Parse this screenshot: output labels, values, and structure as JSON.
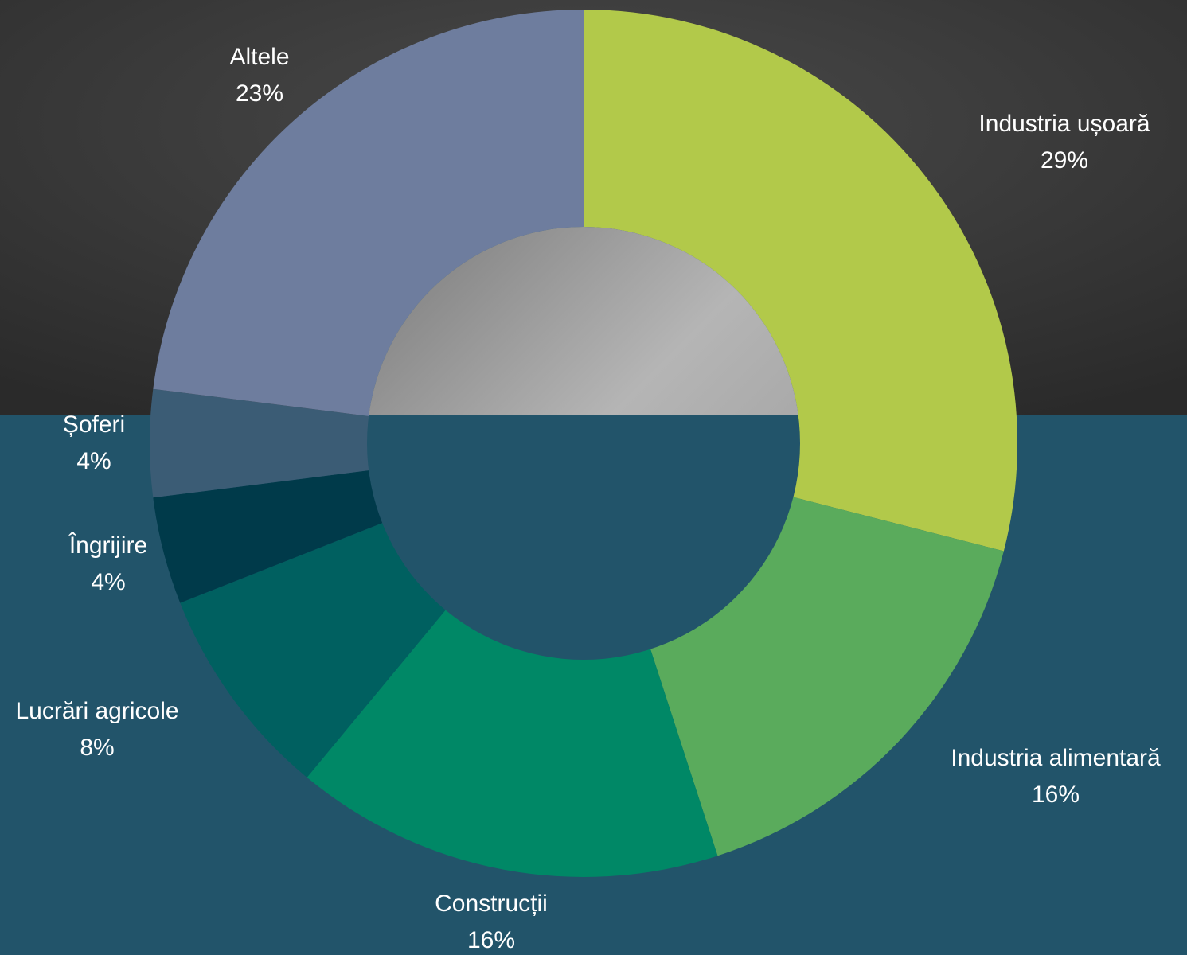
{
  "chart_data": {
    "type": "donut",
    "categories": [
      "Industria ușoară",
      "Industria alimentară",
      "Construcții",
      "Lucrări agricole",
      "Îngrijire",
      "Șoferi",
      "Altele"
    ],
    "values": [
      29,
      16,
      16,
      8,
      4,
      4,
      23
    ],
    "value_labels": [
      "29%",
      "16%",
      "16%",
      "8%",
      "4%",
      "4%",
      "23%"
    ],
    "colors": [
      "#b2c94a",
      "#5aab5c",
      "#008866",
      "#006060",
      "#003a4a",
      "#3b5c75",
      "#6e7d9e"
    ]
  }
}
